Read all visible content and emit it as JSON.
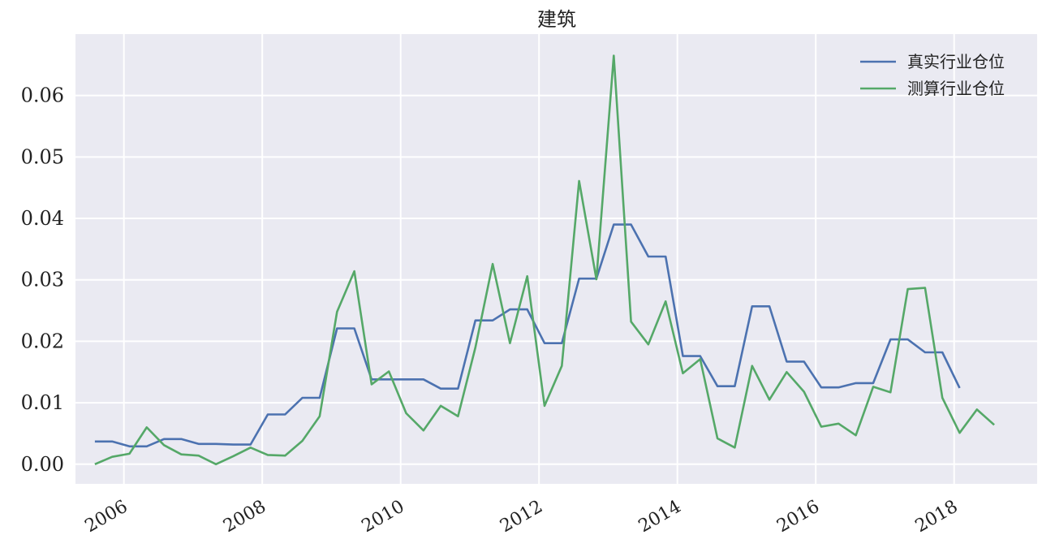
{
  "chart_data": {
    "type": "line",
    "title": "建筑",
    "xlabel": "",
    "ylabel": "",
    "xlim": [
      2005.3,
      2019.2
    ],
    "ylim": [
      -0.0032,
      0.07
    ],
    "yticks": [
      0.0,
      0.01,
      0.02,
      0.03,
      0.04,
      0.05,
      0.06
    ],
    "ytick_labels": [
      "0.00",
      "0.01",
      "0.02",
      "0.03",
      "0.04",
      "0.05",
      "0.06"
    ],
    "xticks": [
      2006,
      2008,
      2010,
      2012,
      2014,
      2016,
      2018
    ],
    "xtick_labels": [
      "2006",
      "2008",
      "2010",
      "2012",
      "2014",
      "2016",
      "2018"
    ],
    "grid": true,
    "legend": "top-right",
    "series": [
      {
        "name": "真实行业仓位",
        "color": "#4c72b0",
        "x": [
          2005.58,
          2005.83,
          2006.08,
          2006.33,
          2006.58,
          2006.83,
          2007.08,
          2007.33,
          2007.58,
          2007.83,
          2008.08,
          2008.33,
          2008.58,
          2008.83,
          2009.08,
          2009.33,
          2009.58,
          2009.83,
          2010.08,
          2010.33,
          2010.58,
          2010.83,
          2011.08,
          2011.33,
          2011.58,
          2011.83,
          2012.08,
          2012.33,
          2012.58,
          2012.83,
          2013.08,
          2013.33,
          2013.58,
          2013.83,
          2014.08,
          2014.33,
          2014.58,
          2014.83,
          2015.08,
          2015.33,
          2015.58,
          2015.83,
          2016.08,
          2016.33,
          2016.58,
          2016.83,
          2017.08,
          2017.33,
          2017.58,
          2017.83,
          2018.08
        ],
        "y": [
          0.0037,
          0.0037,
          0.0029,
          0.0029,
          0.0041,
          0.0041,
          0.0033,
          0.0033,
          0.0032,
          0.0032,
          0.0081,
          0.0081,
          0.0108,
          0.0108,
          0.0221,
          0.0221,
          0.0138,
          0.0138,
          0.0138,
          0.0138,
          0.0123,
          0.0123,
          0.0234,
          0.0234,
          0.0252,
          0.0252,
          0.0197,
          0.0197,
          0.0302,
          0.0302,
          0.039,
          0.039,
          0.0338,
          0.0338,
          0.0176,
          0.0176,
          0.0127,
          0.0127,
          0.0257,
          0.0257,
          0.0167,
          0.0167,
          0.0125,
          0.0125,
          0.0132,
          0.0132,
          0.0203,
          0.0203,
          0.0182,
          0.0182,
          0.0124
        ]
      },
      {
        "name": "测算行业仓位",
        "color": "#55a868",
        "x": [
          2005.58,
          2005.83,
          2006.08,
          2006.33,
          2006.58,
          2006.83,
          2007.08,
          2007.33,
          2007.58,
          2007.83,
          2008.08,
          2008.33,
          2008.58,
          2008.83,
          2009.08,
          2009.33,
          2009.58,
          2009.83,
          2010.08,
          2010.33,
          2010.58,
          2010.83,
          2011.08,
          2011.33,
          2011.58,
          2011.83,
          2012.08,
          2012.33,
          2012.58,
          2012.83,
          2013.08,
          2013.33,
          2013.58,
          2013.83,
          2014.08,
          2014.33,
          2014.58,
          2014.83,
          2015.08,
          2015.33,
          2015.58,
          2015.83,
          2016.08,
          2016.33,
          2016.58,
          2016.83,
          2017.08,
          2017.33,
          2017.58,
          2017.83,
          2018.08,
          2018.33,
          2018.58
        ],
        "y": [
          0.0,
          0.0012,
          0.0017,
          0.006,
          0.0031,
          0.0016,
          0.0014,
          0.0,
          0.0013,
          0.0027,
          0.0015,
          0.0014,
          0.0038,
          0.0078,
          0.0248,
          0.0314,
          0.013,
          0.0151,
          0.0083,
          0.0055,
          0.0095,
          0.0078,
          0.019,
          0.0326,
          0.0197,
          0.0306,
          0.0095,
          0.016,
          0.0461,
          0.0301,
          0.0665,
          0.0232,
          0.0195,
          0.0265,
          0.0148,
          0.0171,
          0.0042,
          0.0027,
          0.016,
          0.0105,
          0.015,
          0.0118,
          0.0061,
          0.0066,
          0.0047,
          0.0126,
          0.0117,
          0.0285,
          0.0287,
          0.0108,
          0.0051,
          0.0089,
          0.0064
        ]
      }
    ]
  }
}
